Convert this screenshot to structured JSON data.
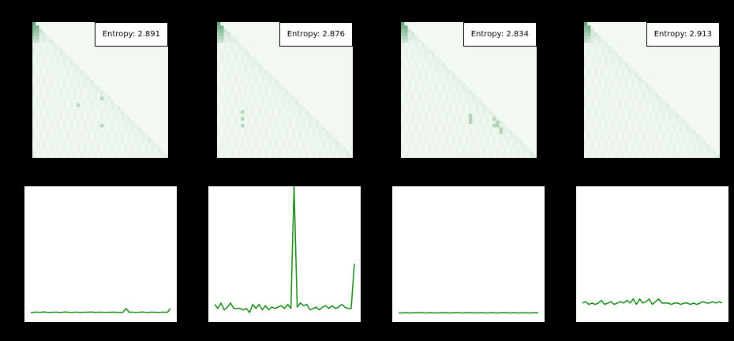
{
  "chart_data": [
    {
      "type": "heatmap",
      "title": "",
      "colormap": "Greens",
      "grid": "lower-triangular",
      "size": 40,
      "annotation": "Entropy: 2.891",
      "highlights": [
        [
          22,
          20
        ],
        [
          25,
          26
        ],
        [
          24,
          13
        ],
        [
          30,
          20
        ],
        [
          33,
          34
        ],
        [
          36,
          40
        ]
      ]
    },
    {
      "type": "heatmap",
      "title": "",
      "colormap": "Greens",
      "grid": "lower-triangular",
      "size": 40,
      "annotation": "Entropy: 2.876",
      "highlights": [
        [
          26,
          7
        ],
        [
          28,
          7
        ],
        [
          30,
          7
        ],
        [
          24,
          26
        ],
        [
          23,
          25
        ],
        [
          35,
          37
        ]
      ]
    },
    {
      "type": "heatmap",
      "title": "",
      "colormap": "Greens",
      "grid": "lower-triangular",
      "size": 40,
      "annotation": "Entropy: 2.834",
      "highlights": [
        [
          27,
          20
        ],
        [
          28,
          20
        ],
        [
          29,
          20
        ],
        [
          28,
          27
        ],
        [
          29,
          28
        ],
        [
          30,
          28
        ],
        [
          31,
          29
        ],
        [
          30,
          27
        ],
        [
          32,
          29
        ]
      ]
    },
    {
      "type": "heatmap",
      "title": "",
      "colormap": "Greens",
      "grid": "lower-triangular",
      "size": 40,
      "annotation": "Entropy: 2.913",
      "highlights": []
    },
    {
      "type": "line",
      "title": "",
      "xlabel": "",
      "ylabel": "",
      "color": "#138a13",
      "x": [
        0,
        1,
        2,
        3,
        4,
        5,
        6,
        7,
        8,
        9,
        10,
        11,
        12,
        13,
        14,
        15,
        16,
        17,
        18,
        19,
        20,
        21,
        22,
        23,
        24,
        25,
        26,
        27,
        28,
        29,
        30,
        31,
        32,
        33,
        34,
        35,
        36,
        37,
        38,
        39,
        40,
        41,
        42,
        43,
        44
      ],
      "ylim": [
        0,
        1
      ],
      "series": [
        {
          "values": [
            0.07,
            0.072,
            0.073,
            0.071,
            0.075,
            0.072,
            0.071,
            0.072,
            0.073,
            0.071,
            0.072,
            0.074,
            0.072,
            0.071,
            0.073,
            0.072,
            0.071,
            0.073,
            0.072,
            0.074,
            0.071,
            0.072,
            0.073,
            0.072,
            0.071,
            0.072,
            0.073,
            0.072,
            0.071,
            0.072,
            0.1,
            0.072,
            0.073,
            0.071,
            0.072,
            0.074,
            0.072,
            0.071,
            0.073,
            0.072,
            0.071,
            0.072,
            0.073,
            0.071,
            0.1
          ]
        }
      ]
    },
    {
      "type": "line",
      "title": "",
      "xlabel": "",
      "ylabel": "",
      "color": "#138a13",
      "x": [
        0,
        1,
        2,
        3,
        4,
        5,
        6,
        7,
        8,
        9,
        10,
        11,
        12,
        13,
        14,
        15,
        16,
        17,
        18,
        19,
        20,
        21,
        22,
        23,
        24,
        25,
        26,
        27,
        28,
        29,
        30,
        31,
        32,
        33,
        34,
        35,
        36,
        37,
        38,
        39,
        40,
        41,
        42,
        43,
        44
      ],
      "ylim": [
        0,
        1
      ],
      "series": [
        {
          "values": [
            0.13,
            0.1,
            0.14,
            0.09,
            0.11,
            0.14,
            0.1,
            0.1,
            0.1,
            0.09,
            0.1,
            0.07,
            0.13,
            0.1,
            0.13,
            0.09,
            0.12,
            0.09,
            0.11,
            0.1,
            0.11,
            0.12,
            0.1,
            0.13,
            0.1,
            1.0,
            0.11,
            0.14,
            0.12,
            0.13,
            0.09,
            0.1,
            0.11,
            0.09,
            0.11,
            0.12,
            0.1,
            0.12,
            0.1,
            0.11,
            0.13,
            0.11,
            0.1,
            0.1,
            0.43
          ]
        }
      ]
    },
    {
      "type": "line",
      "title": "",
      "xlabel": "",
      "ylabel": "",
      "color": "#138a13",
      "x": [
        0,
        1,
        2,
        3,
        4,
        5,
        6,
        7,
        8,
        9,
        10,
        11,
        12,
        13,
        14,
        15,
        16,
        17,
        18,
        19,
        20,
        21,
        22,
        23,
        24,
        25,
        26,
        27,
        28,
        29,
        30,
        31,
        32,
        33,
        34,
        35,
        36,
        37,
        38,
        39,
        40,
        41,
        42,
        43,
        44
      ],
      "ylim": [
        0,
        1
      ],
      "series": [
        {
          "values": [
            0.068,
            0.067,
            0.069,
            0.068,
            0.067,
            0.069,
            0.068,
            0.07,
            0.068,
            0.067,
            0.069,
            0.068,
            0.067,
            0.068,
            0.069,
            0.068,
            0.067,
            0.069,
            0.068,
            0.07,
            0.067,
            0.068,
            0.069,
            0.068,
            0.067,
            0.068,
            0.069,
            0.068,
            0.067,
            0.069,
            0.068,
            0.067,
            0.068,
            0.069,
            0.068,
            0.067,
            0.069,
            0.068,
            0.067,
            0.069,
            0.068,
            0.067,
            0.068,
            0.069,
            0.068
          ]
        }
      ]
    },
    {
      "type": "line",
      "title": "",
      "xlabel": "",
      "ylabel": "",
      "color": "#138a13",
      "x": [
        0,
        1,
        2,
        3,
        4,
        5,
        6,
        7,
        8,
        9,
        10,
        11,
        12,
        13,
        14,
        15,
        16,
        17,
        18,
        19,
        20,
        21,
        22,
        23,
        24,
        25,
        26,
        27,
        28,
        29,
        30,
        31,
        32,
        33,
        34,
        35,
        36,
        37,
        38,
        39,
        40,
        41,
        42,
        43,
        44
      ],
      "ylim": [
        0,
        1
      ],
      "series": [
        {
          "values": [
            0.14,
            0.15,
            0.13,
            0.14,
            0.13,
            0.14,
            0.16,
            0.13,
            0.14,
            0.15,
            0.13,
            0.14,
            0.15,
            0.14,
            0.16,
            0.14,
            0.17,
            0.13,
            0.17,
            0.14,
            0.15,
            0.17,
            0.13,
            0.15,
            0.17,
            0.14,
            0.14,
            0.14,
            0.13,
            0.14,
            0.14,
            0.13,
            0.14,
            0.14,
            0.13,
            0.14,
            0.13,
            0.14,
            0.15,
            0.14,
            0.14,
            0.15,
            0.14,
            0.15,
            0.14
          ]
        }
      ]
    }
  ]
}
